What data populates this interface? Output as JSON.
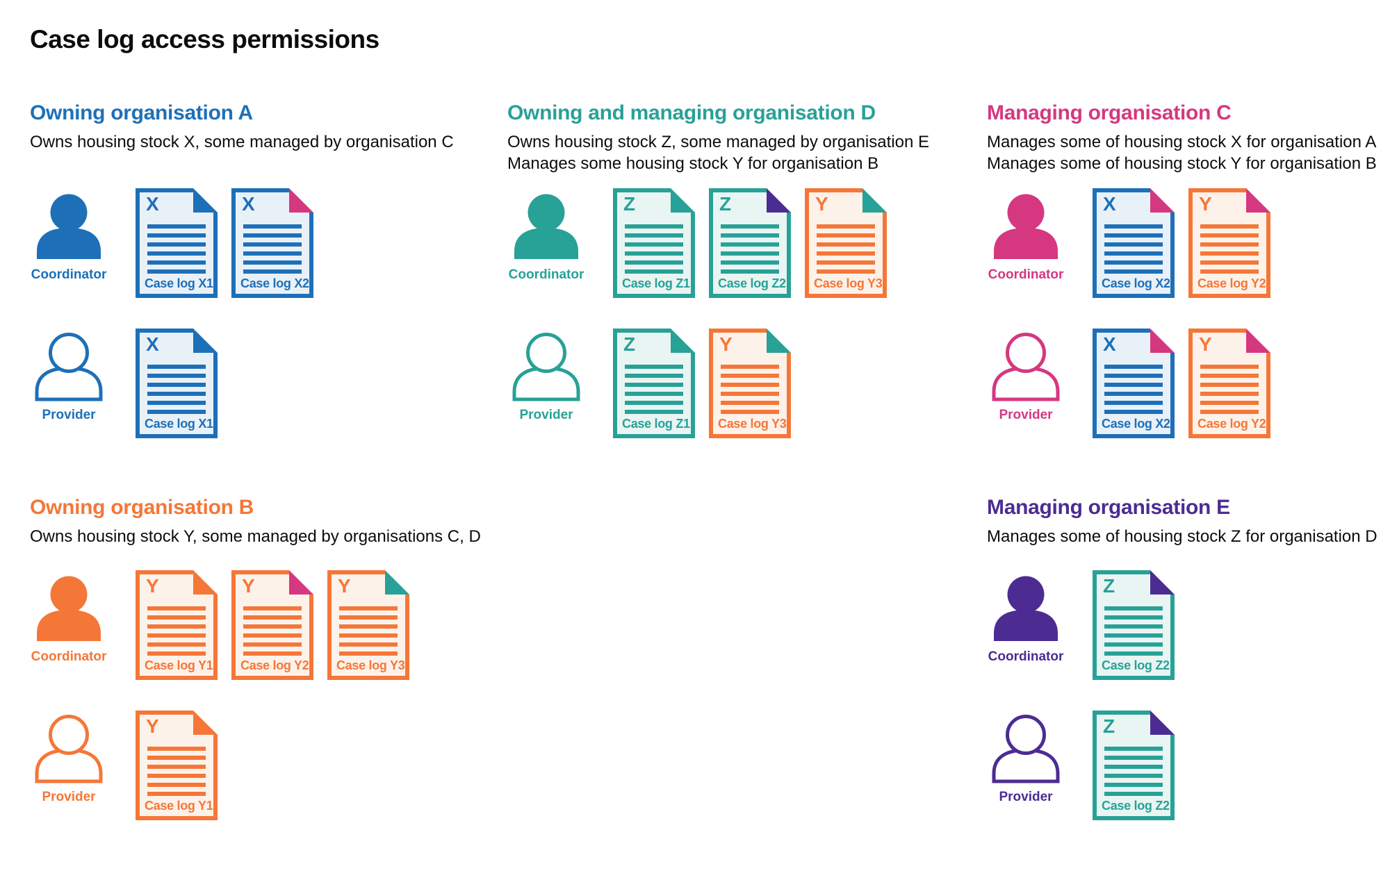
{
  "title": "Case log access permissions",
  "palette": {
    "text": "#0b0c0c",
    "blue": "#1d70b8",
    "teal": "#28a197",
    "pink": "#d53880",
    "orange": "#f47738",
    "purple": "#4c2c92",
    "blue_tint": "#e9f1f8",
    "teal_tint": "#e9f5f3",
    "orange_tint": "#fdf2e9",
    "background": "#ffffff"
  },
  "legend": {
    "doc_body_color_means": "housing stock letter (X blue, Y orange, Z teal)",
    "doc_fold_color_means": "organisation managing that case log"
  },
  "organisations": [
    {
      "heading": "Owning organisation A",
      "color": "blue",
      "description": [
        "Owns housing stock X, some managed by organisation C"
      ],
      "rows": [
        {
          "role": "Coordinator",
          "person": "filled",
          "docs": [
            {
              "letter": "X",
              "label": "Case log X1",
              "color": "blue",
              "fold": "blue"
            },
            {
              "letter": "X",
              "label": "Case log X2",
              "color": "blue",
              "fold": "pink"
            }
          ]
        },
        {
          "role": "Provider",
          "person": "outline",
          "docs": [
            {
              "letter": "X",
              "label": "Case log X1",
              "color": "blue",
              "fold": "blue"
            }
          ]
        }
      ]
    },
    {
      "heading": "Owning and managing organisation D",
      "color": "teal",
      "description": [
        "Owns housing stock Z, some managed by organisation E",
        "Manages some housing stock Y for organisation B"
      ],
      "rows": [
        {
          "role": "Coordinator",
          "person": "filled",
          "docs": [
            {
              "letter": "Z",
              "label": "Case log Z1",
              "color": "teal",
              "fold": "teal"
            },
            {
              "letter": "Z",
              "label": "Case log Z2",
              "color": "teal",
              "fold": "purple"
            },
            {
              "letter": "Y",
              "label": "Case log Y3",
              "color": "orange",
              "fold": "teal"
            }
          ]
        },
        {
          "role": "Provider",
          "person": "outline",
          "docs": [
            {
              "letter": "Z",
              "label": "Case log Z1",
              "color": "teal",
              "fold": "teal"
            },
            {
              "letter": "Y",
              "label": "Case log Y3",
              "color": "orange",
              "fold": "teal"
            }
          ]
        }
      ]
    },
    {
      "heading": "Managing organisation C",
      "color": "pink",
      "description": [
        "Manages some of housing stock X for organisation A",
        "Manages some of housing stock Y for organisation B"
      ],
      "rows": [
        {
          "role": "Coordinator",
          "person": "filled",
          "docs": [
            {
              "letter": "X",
              "label": "Case log X2",
              "color": "blue",
              "fold": "pink"
            },
            {
              "letter": "Y",
              "label": "Case log Y2",
              "color": "orange",
              "fold": "pink"
            }
          ]
        },
        {
          "role": "Provider",
          "person": "outline",
          "docs": [
            {
              "letter": "X",
              "label": "Case log X2",
              "color": "blue",
              "fold": "pink"
            },
            {
              "letter": "Y",
              "label": "Case log Y2",
              "color": "orange",
              "fold": "pink"
            }
          ]
        }
      ]
    },
    {
      "heading": "Owning organisation B",
      "color": "orange",
      "description": [
        "Owns housing stock Y, some managed by organisations C, D"
      ],
      "rows": [
        {
          "role": "Coordinator",
          "person": "filled",
          "docs": [
            {
              "letter": "Y",
              "label": "Case log Y1",
              "color": "orange",
              "fold": "orange"
            },
            {
              "letter": "Y",
              "label": "Case log Y2",
              "color": "orange",
              "fold": "pink"
            },
            {
              "letter": "Y",
              "label": "Case log Y3",
              "color": "orange",
              "fold": "teal"
            }
          ]
        },
        {
          "role": "Provider",
          "person": "outline",
          "docs": [
            {
              "letter": "Y",
              "label": "Case log Y1",
              "color": "orange",
              "fold": "orange"
            }
          ]
        }
      ]
    },
    {
      "heading": "Managing organisation E",
      "color": "purple",
      "description": [
        "Manages some of housing stock Z for organisation D"
      ],
      "rows": [
        {
          "role": "Coordinator",
          "person": "filled",
          "docs": [
            {
              "letter": "Z",
              "label": "Case log Z2",
              "color": "teal",
              "fold": "purple"
            }
          ]
        },
        {
          "role": "Provider",
          "person": "outline",
          "docs": [
            {
              "letter": "Z",
              "label": "Case log Z2",
              "color": "teal",
              "fold": "purple"
            }
          ]
        }
      ]
    }
  ]
}
